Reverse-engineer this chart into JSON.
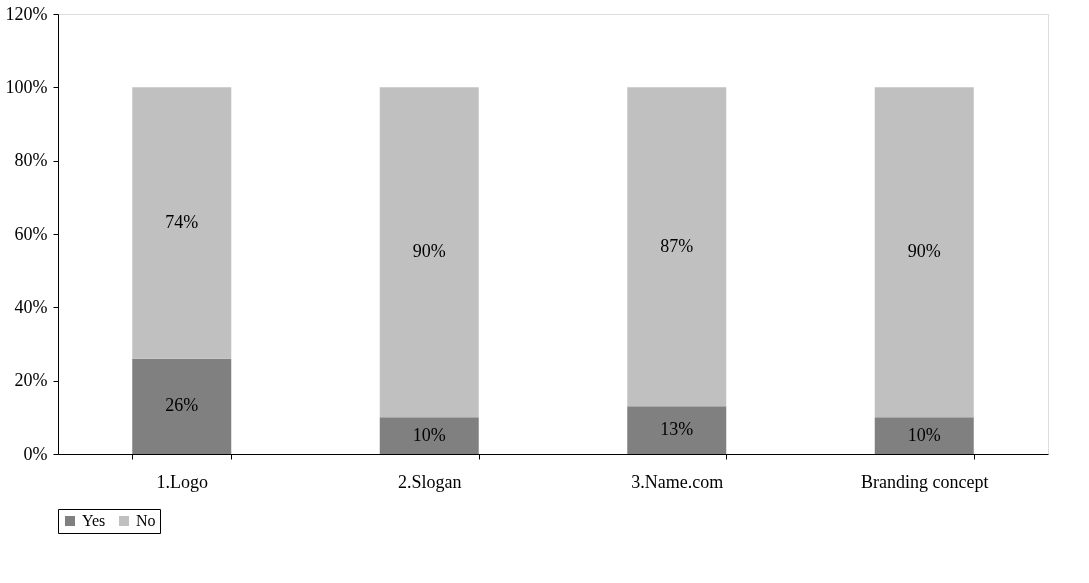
{
  "chart_data": {
    "type": "bar",
    "stacked": true,
    "categories": [
      "1.Logo",
      "2.Slogan",
      "3.Name.com",
      "Branding concept"
    ],
    "series": [
      {
        "name": "Yes",
        "color": "#808080",
        "values": [
          26,
          10,
          13,
          10
        ],
        "value_labels": [
          "26%",
          "10%",
          "13%",
          "10%"
        ]
      },
      {
        "name": "No",
        "color": "#c0c0c0",
        "values": [
          74,
          90,
          87,
          90
        ],
        "value_labels": [
          "74%",
          "90%",
          "87%",
          "90%"
        ]
      }
    ],
    "ylim": [
      0,
      120
    ],
    "yticks": [
      {
        "value": 0,
        "label": "0%"
      },
      {
        "value": 20,
        "label": "20%"
      },
      {
        "value": 40,
        "label": "40%"
      },
      {
        "value": 60,
        "label": "60%"
      },
      {
        "value": 80,
        "label": "80%"
      },
      {
        "value": 100,
        "label": "100%"
      },
      {
        "value": 120,
        "label": "120%"
      }
    ],
    "grid": false,
    "legend": "bottom"
  }
}
